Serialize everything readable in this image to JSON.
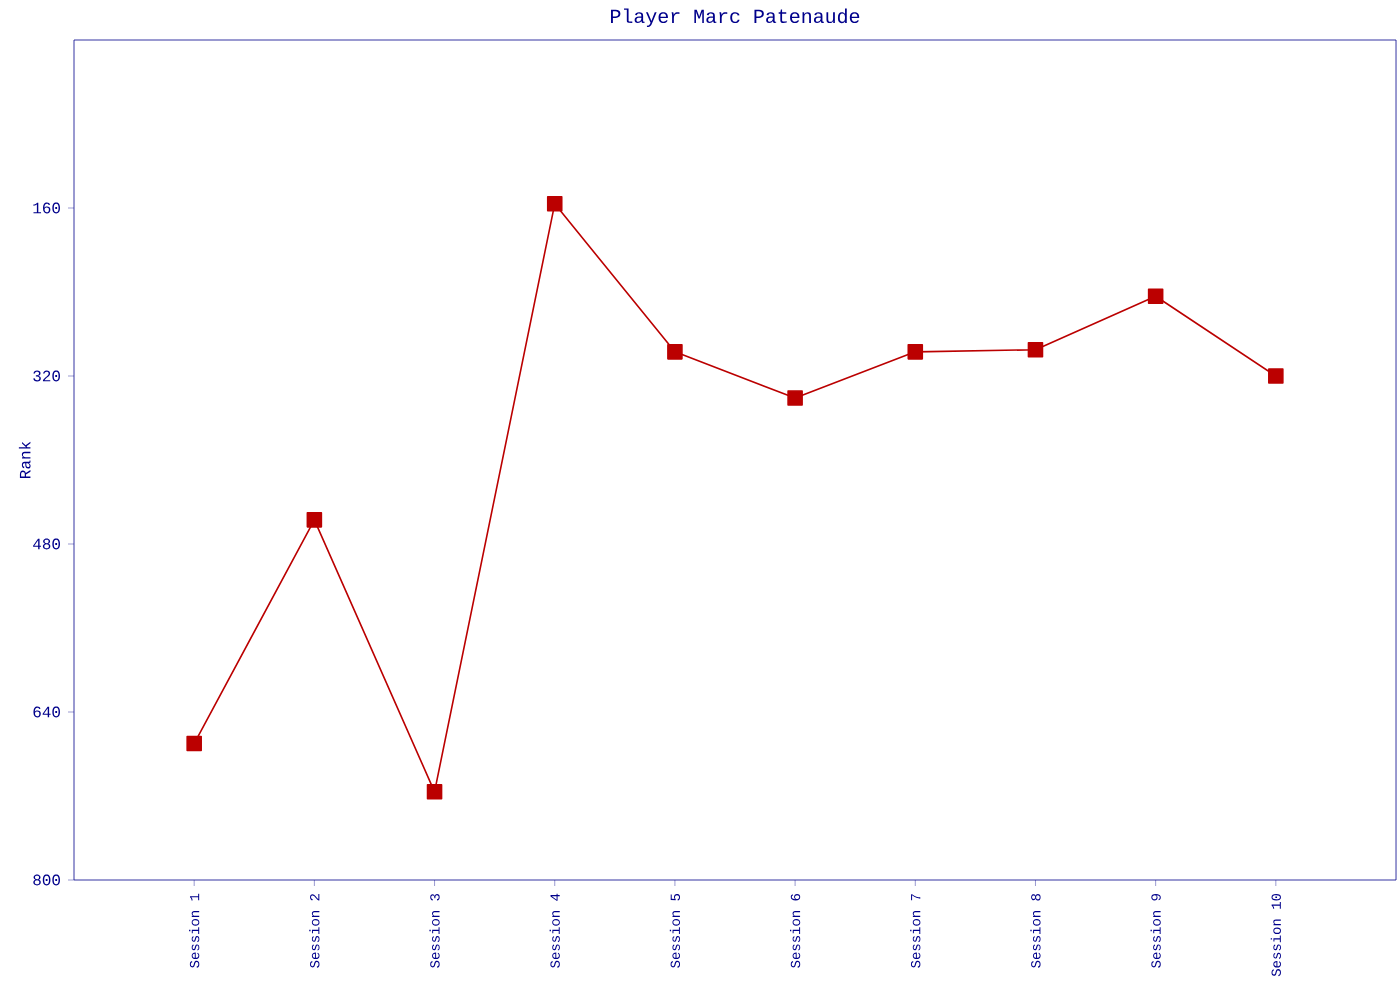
{
  "chart_data": {
    "type": "line",
    "title": "Player Marc Patenaude",
    "ylabel": "Rank",
    "categories": [
      "Session 1",
      "Session 2",
      "Session 3",
      "Session 4",
      "Session 5",
      "Session 6",
      "Session 7",
      "Session 8",
      "Session 9",
      "Session 10"
    ],
    "series": [
      {
        "color": "#bb0000",
        "values": [
          670,
          457,
          716,
          156,
          297,
          341,
          297,
          295,
          244,
          320
        ]
      }
    ],
    "ylim": [
      800,
      0
    ],
    "yticks": [
      160,
      320,
      480,
      640,
      800
    ],
    "marker": "square",
    "line_style": "solid",
    "grid": false
  }
}
